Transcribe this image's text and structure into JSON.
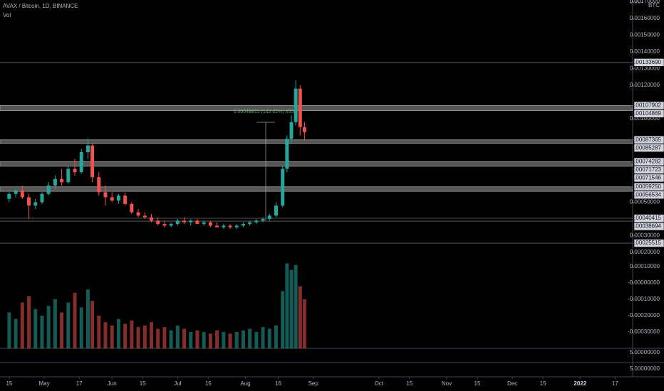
{
  "chart_data": {
    "type": "candlestick",
    "title": "AVAX / Bitcoin, 1D, BINANCE",
    "unit": "BTC",
    "up_color": "#26a69a",
    "down_color": "#ef5350",
    "background": "#000000",
    "x": [
      0,
      3,
      6,
      9,
      12,
      15,
      18,
      21,
      24,
      27,
      30,
      33,
      36,
      38,
      41,
      44,
      47,
      50,
      53,
      56,
      59,
      62,
      65,
      68,
      71,
      74,
      77,
      80,
      83,
      86,
      89,
      92,
      95,
      98,
      101,
      104,
      107,
      110,
      113,
      116,
      119,
      122,
      125,
      127,
      129,
      131,
      133,
      135
    ],
    "open": [
      0.00052,
      0.00055,
      0.00057,
      0.00053,
      0.00048,
      0.0005,
      0.00055,
      0.0006,
      0.00064,
      0.00062,
      0.0007,
      0.00068,
      0.0008,
      0.00084,
      0.00065,
      0.00056,
      0.00053,
      0.00051,
      0.00054,
      0.00049,
      0.00044,
      0.00042,
      0.00041,
      0.00039,
      0.00037,
      0.00036,
      0.00037,
      0.00039,
      0.00038,
      0.00039,
      0.00037,
      0.00038,
      0.00036,
      0.00035,
      0.00036,
      0.00035,
      0.00036,
      0.00037,
      0.00038,
      0.00039,
      0.0004,
      0.00042,
      0.00048,
      0.0007,
      0.00088,
      0.00098,
      0.00118,
      0.00095
    ],
    "high": [
      0.00056,
      0.00058,
      0.0006,
      0.00055,
      0.00052,
      0.00056,
      0.00062,
      0.00066,
      0.0007,
      0.00072,
      0.00076,
      0.00082,
      0.00088,
      0.00085,
      0.00068,
      0.0006,
      0.00056,
      0.00055,
      0.00056,
      0.0005,
      0.00046,
      0.00044,
      0.00043,
      0.00041,
      0.00039,
      0.00038,
      0.0004,
      0.00041,
      0.0004,
      0.0004,
      0.00039,
      0.00039,
      0.00038,
      0.00037,
      0.00037,
      0.00037,
      0.00038,
      0.00039,
      0.0004,
      0.00041,
      0.00043,
      0.0005,
      0.00072,
      0.0009,
      0.00102,
      0.00123,
      0.0012,
      0.00098
    ],
    "low": [
      0.0005,
      0.00053,
      0.00052,
      0.0004,
      0.00046,
      0.00049,
      0.00054,
      0.00058,
      0.0006,
      0.00061,
      0.00066,
      0.00067,
      0.00076,
      0.00062,
      0.00054,
      0.00048,
      0.0005,
      0.00049,
      0.00048,
      0.00043,
      0.00041,
      0.0004,
      0.00038,
      0.00036,
      0.00035,
      0.00035,
      0.00036,
      0.00037,
      0.00036,
      0.00037,
      0.00036,
      0.00035,
      0.00035,
      0.00034,
      0.00034,
      0.00034,
      0.00035,
      0.00036,
      0.00037,
      0.00038,
      0.00039,
      0.00041,
      0.00047,
      0.00068,
      0.00085,
      0.00096,
      0.0009,
      0.00087
    ],
    "close": [
      0.00055,
      0.00057,
      0.00053,
      0.00048,
      0.0005,
      0.00055,
      0.0006,
      0.00064,
      0.00062,
      0.0007,
      0.00068,
      0.0008,
      0.00084,
      0.00065,
      0.00056,
      0.00053,
      0.00051,
      0.00054,
      0.00049,
      0.00044,
      0.00042,
      0.00041,
      0.00039,
      0.00037,
      0.00036,
      0.00037,
      0.00039,
      0.00038,
      0.00039,
      0.00037,
      0.00038,
      0.00036,
      0.00035,
      0.00036,
      0.00035,
      0.00036,
      0.00037,
      0.00038,
      0.00039,
      0.0004,
      0.00042,
      0.00048,
      0.0007,
      0.00088,
      0.00098,
      0.00118,
      0.00095,
      0.00092
    ],
    "xlim": [
      -4.2,
      285
    ],
    "xticks": [
      {
        "value": 0,
        "label": "15"
      },
      {
        "value": 16,
        "label": "May"
      },
      {
        "value": 32,
        "label": "17"
      },
      {
        "value": 47,
        "label": "Jun"
      },
      {
        "value": 61,
        "label": "15"
      },
      {
        "value": 77,
        "label": "Jul"
      },
      {
        "value": 91,
        "label": "15"
      },
      {
        "value": 108,
        "label": "Aug"
      },
      {
        "value": 123,
        "label": "16"
      },
      {
        "value": 139,
        "label": "Sep"
      },
      {
        "value": 169,
        "label": "Oct"
      },
      {
        "value": 183,
        "label": "15"
      },
      {
        "value": 200,
        "label": "Nov"
      },
      {
        "value": 214,
        "label": "15"
      },
      {
        "value": 230,
        "label": "Dec"
      },
      {
        "value": 244,
        "label": "15"
      },
      {
        "value": 261,
        "label": "2022"
      },
      {
        "value": 277,
        "label": "17"
      }
    ],
    "ylim": [
      0.00019149,
      0.00171064
    ],
    "yticks": [
      {
        "value": 0.0017,
        "label": "0.00170000"
      },
      {
        "value": 0.0016,
        "label": "0.00160000"
      },
      {
        "value": 0.0015,
        "label": "0.00150000"
      },
      {
        "value": 0.0014,
        "label": "0.00140000"
      },
      {
        "value": 0.0013,
        "label": "0.00130000"
      },
      {
        "value": 0.0012,
        "label": "0.00120000"
      },
      {
        "value": 0.001,
        "label": "0.00100000"
      },
      {
        "value": 0.0005,
        "label": "0.00050000"
      },
      {
        "value": 0.0003,
        "label": "0.00030000"
      },
      {
        "value": 0.0002,
        "label": "0.00020000"
      }
    ],
    "levels": [
      {
        "value": 0.0013369,
        "label": "0.00133690"
      },
      {
        "value": 0.00071723,
        "label": "0.00071723"
      },
      {
        "value": 0.00040415,
        "label": "0.00040415"
      },
      {
        "value": 0.00038694,
        "label": "0.00038694"
      },
      {
        "value": 0.00025515,
        "label": "0.00025515"
      }
    ],
    "zones": [
      {
        "from": {
          "value": 0.00107902,
          "label": "0.00107902"
        },
        "to": {
          "value": 0.00104869,
          "label": "0.00104869"
        }
      },
      {
        "from": {
          "value": 0.00087365,
          "label": "0.00087365"
        },
        "to": {
          "value": 0.00085287,
          "label": "0.00085287"
        }
      },
      {
        "from": {
          "value": 0.00074282,
          "label": "0.00074282"
        },
        "to": {
          "value": 0.00071546,
          "label": "0.00071546"
        }
      },
      {
        "from": {
          "value": 0.0005925,
          "label": "0.00059250"
        },
        "to": {
          "value": 0.00056534,
          "label": "0.00056534"
        }
      }
    ],
    "annotation": "0.00048815 (162.02%) 6551",
    "volume": {
      "title": "Vol",
      "values": [
        -0.00018,
        -0.00022,
        -0.00012,
        -8e-05,
        -0.00016,
        -0.0002,
        -0.00014,
        -0.0001,
        -0.00018,
        -0.00012,
        -6e-05,
        -0.00015,
        -4e-05,
        -0.00011,
        -0.0002,
        -0.00024,
        -0.00026,
        -0.00022,
        -0.00025,
        -0.00023,
        -0.00027,
        -0.00026,
        -0.00024,
        -0.00028,
        -0.00027,
        -0.00029,
        -0.00026,
        -0.00028,
        -0.0003,
        -0.00029,
        -0.0003,
        -0.00031,
        -0.00029,
        -0.0003,
        -0.00031,
        -0.0003,
        -0.00029,
        -0.00028,
        -0.0003,
        -0.00027,
        -0.00028,
        -0.00026,
        -5e-05,
        0.00012,
        8e-05,
        0.00011,
        -2e-05,
        -0.0001
      ],
      "ylim": [
        -0.0004,
        0.00015
      ],
      "yticks": [
        {
          "value": 0.0001,
          "label": "0.00010000"
        },
        {
          "value": 0,
          "label": "-0.00000000"
        },
        {
          "value": -0.0001,
          "label": "-0.00010000"
        },
        {
          "value": -0.0002,
          "label": "-0.00020000"
        },
        {
          "value": -0.0003,
          "label": "-0.00030000"
        }
      ]
    },
    "bottom_pane_labels": [
      "5.00000000",
      "5.00000000"
    ]
  }
}
